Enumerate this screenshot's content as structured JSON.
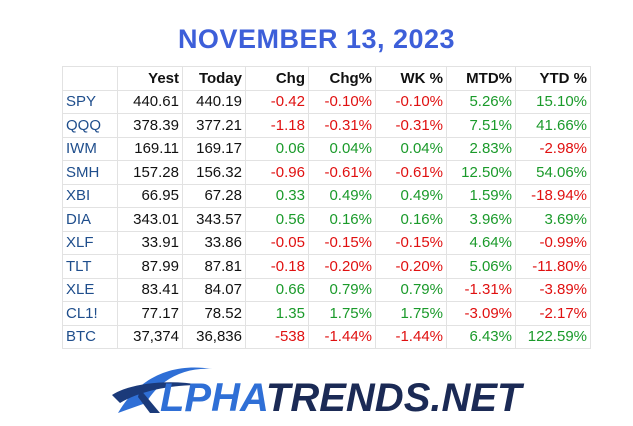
{
  "header": {
    "title": "NOVEMBER 13, 2023"
  },
  "table": {
    "columns": [
      "Yest",
      "Today",
      "Chg",
      "Chg%",
      "WK %",
      "MTD%",
      "YTD %"
    ],
    "rows": [
      [
        "SPY",
        "440.61",
        "440.19",
        "-0.42",
        "-0.10%",
        "-0.10%",
        "5.26%",
        "15.10%"
      ],
      [
        "QQQ",
        "378.39",
        "377.21",
        "-1.18",
        "-0.31%",
        "-0.31%",
        "7.51%",
        "41.66%"
      ],
      [
        "IWM",
        "169.11",
        "169.17",
        "0.06",
        "0.04%",
        "0.04%",
        "2.83%",
        "-2.98%"
      ],
      [
        "SMH",
        "157.28",
        "156.32",
        "-0.96",
        "-0.61%",
        "-0.61%",
        "12.50%",
        "54.06%"
      ],
      [
        "XBI",
        "66.95",
        "67.28",
        "0.33",
        "0.49%",
        "0.49%",
        "1.59%",
        "-18.94%"
      ],
      [
        "DIA",
        "343.01",
        "343.57",
        "0.56",
        "0.16%",
        "0.16%",
        "3.96%",
        "3.69%"
      ],
      [
        "XLF",
        "33.91",
        "33.86",
        "-0.05",
        "-0.15%",
        "-0.15%",
        "4.64%",
        "-0.99%"
      ],
      [
        "TLT",
        "87.99",
        "87.81",
        "-0.18",
        "-0.20%",
        "-0.20%",
        "5.06%",
        "-11.80%"
      ],
      [
        "XLE",
        "83.41",
        "84.07",
        "0.66",
        "0.79%",
        "0.79%",
        "-1.31%",
        "-3.89%"
      ],
      [
        "CL1!",
        "77.17",
        "78.52",
        "1.35",
        "1.75%",
        "1.75%",
        "-3.09%",
        "-2.17%"
      ],
      [
        "BTC",
        "37,374",
        "36,836",
        "-538",
        "-1.44%",
        "-1.44%",
        "6.43%",
        "122.59%"
      ]
    ]
  },
  "logo": {
    "first": "LPHA",
    "second": "TRENDS.NET"
  }
}
